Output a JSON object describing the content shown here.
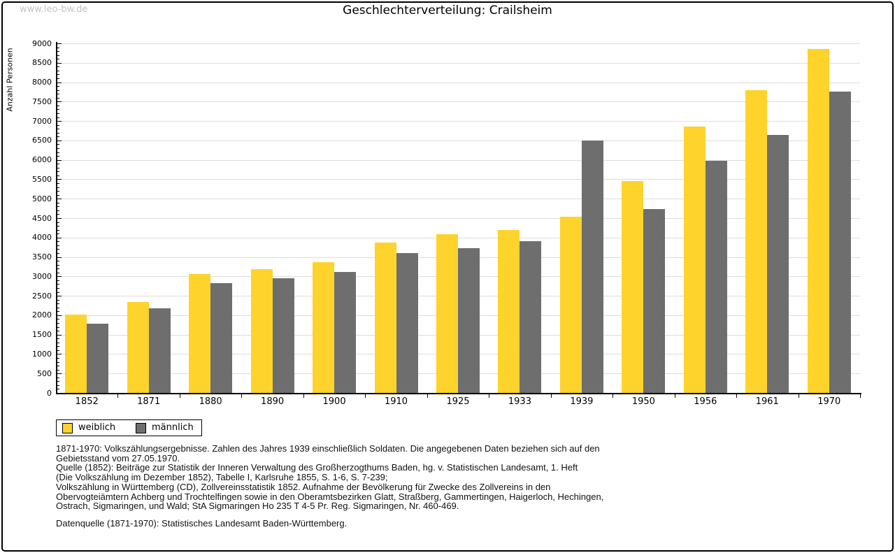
{
  "page": {
    "watermark": "www.leo-bw.de",
    "title": "Geschlechterverteilung: Crailsheim"
  },
  "chart_data": {
    "type": "bar",
    "title": "Geschlechterverteilung: Crailsheim",
    "xlabel": "",
    "ylabel": "Anzahl Personen",
    "ylim": [
      0,
      9000
    ],
    "ytick_step": 500,
    "y_minor_tick_step": 100,
    "yticks": [
      0,
      500,
      1000,
      1500,
      2000,
      2500,
      3000,
      3500,
      4000,
      4500,
      5000,
      5500,
      6000,
      6500,
      7000,
      7500,
      8000,
      8500,
      9000
    ],
    "grid": true,
    "gridline_color": "#dcdcdc",
    "legend_position": "bottom-left",
    "categories": [
      "1852",
      "1871",
      "1880",
      "1890",
      "1900",
      "1910",
      "1925",
      "1933",
      "1939",
      "1950",
      "1956",
      "1961",
      "1970"
    ],
    "series": [
      {
        "name": "weiblich",
        "color": "#FDD32C",
        "values": [
          2010,
          2340,
          3060,
          3190,
          3370,
          3870,
          4090,
          4190,
          4540,
          5460,
          6850,
          7790,
          8860
        ]
      },
      {
        "name": "männlich",
        "color": "#6E6E6E",
        "values": [
          1780,
          2180,
          2830,
          2960,
          3110,
          3600,
          3730,
          3900,
          6500,
          4740,
          5970,
          6650,
          7760
        ]
      }
    ]
  },
  "footnotes": {
    "lines": [
      "1871-1970: Volkszählungsergebnisse. Zahlen des Jahres 1939 einschließlich Soldaten. Die angegebenen Daten beziehen sich auf den",
      "Gebietsstand vom 27.05.1970.",
      "Quelle (1852): Beiträge zur Statistik der Inneren Verwaltung des Großherzogthums Baden, hg. v. Statistischen Landesamt, 1. Heft",
      "(Die Volkszählung im Dezember 1852), Tabelle I, Karlsruhe 1855, S. 1-6, S. 7-239;",
      "Volkszählung in Württemberg (CD), Zollvereinsstatistik 1852. Aufnahme der Bevölkerung für Zwecke des Zollvereins in den",
      "Obervogteiämtern Achberg und Trochtelfingen sowie in den Oberamtsbezirken Glatt, Straßberg, Gammertingen, Haigerloch, Hechingen,",
      "Ostrach, Sigmaringen, und Wald; StA Sigmaringen Ho 235 T 4-5 Pr. Reg. Sigmaringen, Nr. 460-469."
    ],
    "datasource": "Datenquelle (1871-1970): Statistisches Landesamt Baden-Württemberg."
  }
}
